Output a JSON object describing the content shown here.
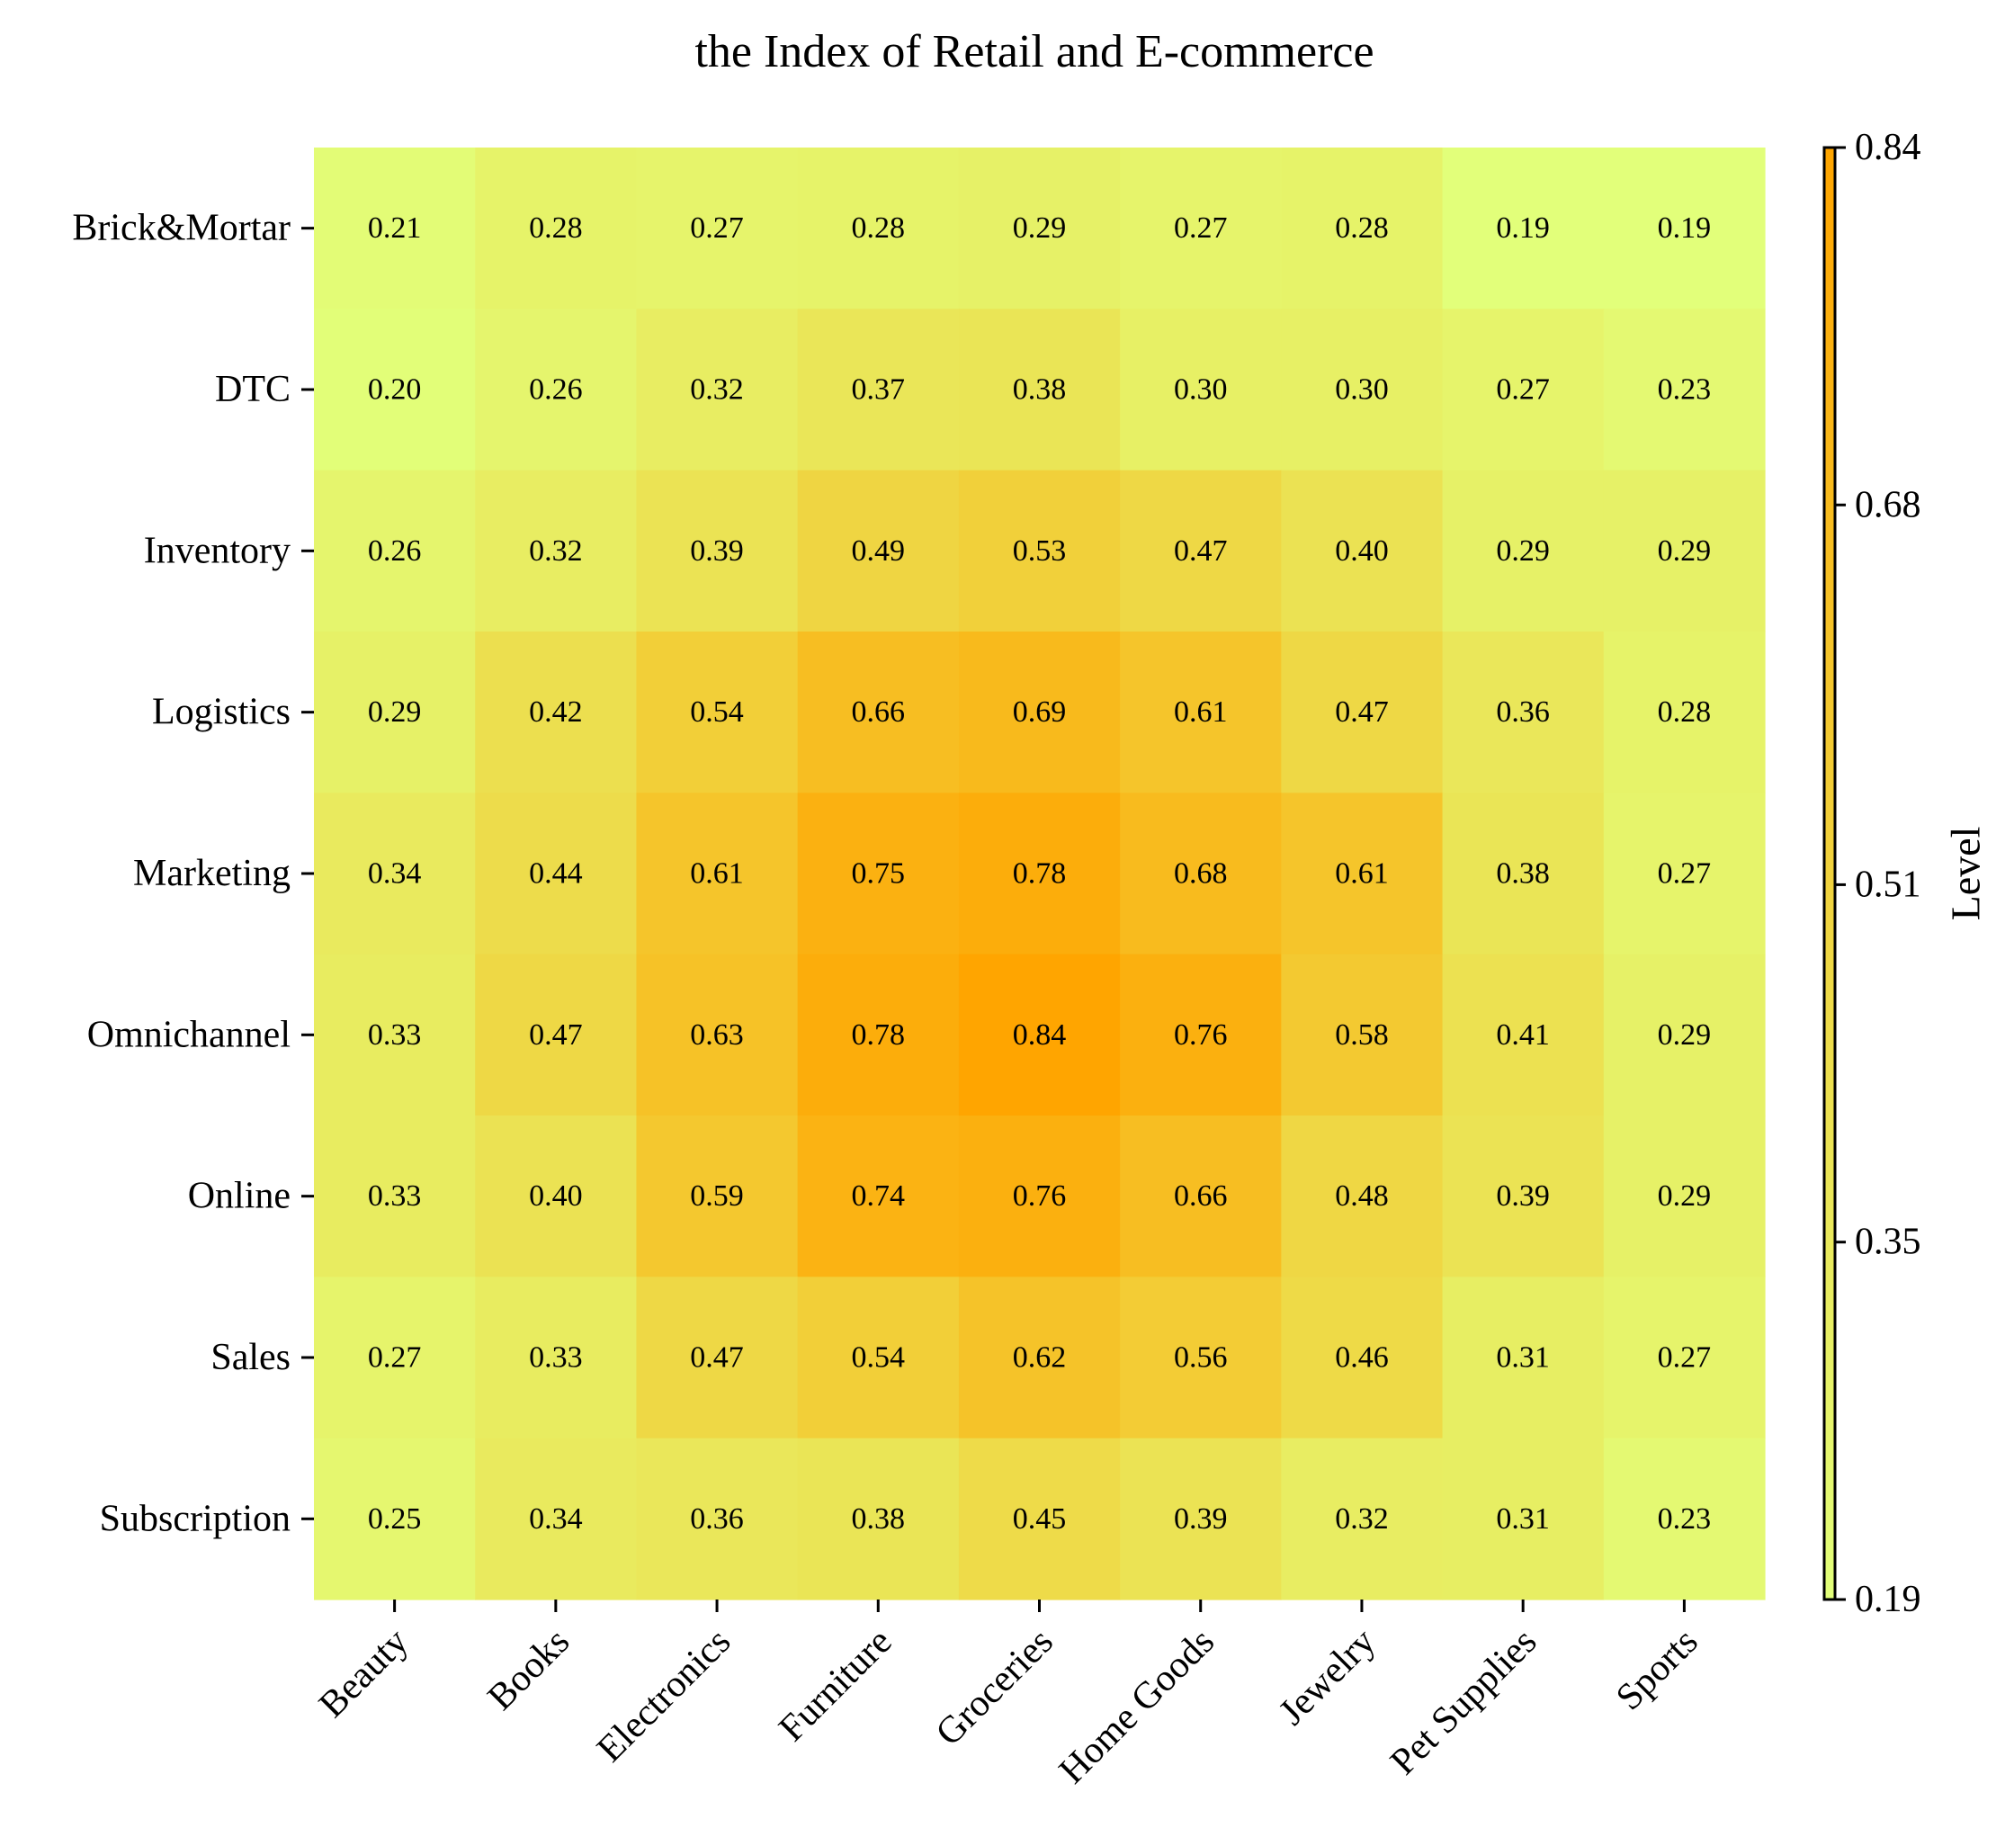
{
  "chart_data": {
    "type": "heatmap",
    "title": "the Index of Retail and E-commerce",
    "rows": [
      "Brick&Mortar",
      "DTC",
      "Inventory",
      "Logistics",
      "Marketing",
      "Omnichannel",
      "Online",
      "Sales",
      "Subscription"
    ],
    "columns": [
      "Beauty",
      "Books",
      "Electronics",
      "Furniture",
      "Groceries",
      "Home Goods",
      "Jewelry",
      "Pet Supplies",
      "Sports"
    ],
    "values": [
      [
        0.21,
        0.28,
        0.27,
        0.28,
        0.29,
        0.27,
        0.28,
        0.19,
        0.19
      ],
      [
        0.2,
        0.26,
        0.32,
        0.37,
        0.38,
        0.3,
        0.3,
        0.27,
        0.23
      ],
      [
        0.26,
        0.32,
        0.39,
        0.49,
        0.53,
        0.47,
        0.4,
        0.29,
        0.29
      ],
      [
        0.29,
        0.42,
        0.54,
        0.66,
        0.69,
        0.61,
        0.47,
        0.36,
        0.28
      ],
      [
        0.34,
        0.44,
        0.61,
        0.75,
        0.78,
        0.68,
        0.61,
        0.38,
        0.27
      ],
      [
        0.33,
        0.47,
        0.63,
        0.78,
        0.84,
        0.76,
        0.58,
        0.41,
        0.29
      ],
      [
        0.33,
        0.4,
        0.59,
        0.74,
        0.76,
        0.66,
        0.48,
        0.39,
        0.29
      ],
      [
        0.27,
        0.33,
        0.47,
        0.54,
        0.62,
        0.56,
        0.46,
        0.31,
        0.27
      ],
      [
        0.25,
        0.34,
        0.36,
        0.38,
        0.45,
        0.39,
        0.32,
        0.31,
        0.23
      ]
    ],
    "value_format": "0.00",
    "colorbar": {
      "label": "Level",
      "min": 0.19,
      "max": 0.84,
      "ticks": [
        "0.19",
        "0.35",
        "0.51",
        "0.68",
        "0.84"
      ],
      "color_low": "#e2ff7a",
      "color_high": "#ffa500"
    },
    "grid": false
  }
}
